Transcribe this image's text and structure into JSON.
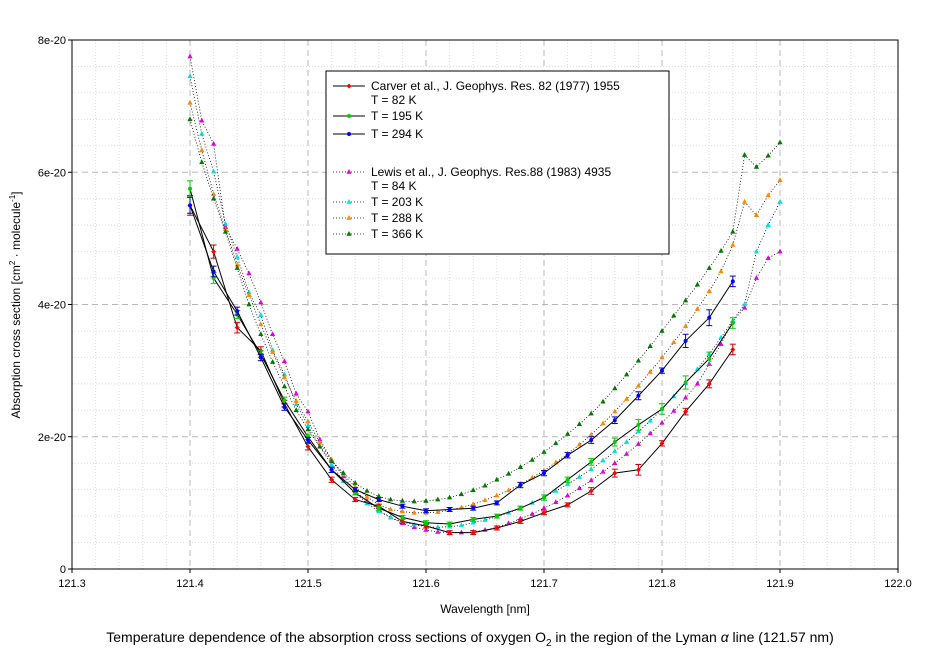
{
  "chart_data": {
    "type": "line",
    "title": "",
    "caption": {
      "pre": "Temperature dependence of the absorption cross sections of oxygen O",
      "sub": "2",
      "mid": " in the region of the Lyman ",
      "alpha": "α",
      "post": " line (121.57 nm)"
    },
    "xlabel": "Wavelength [nm]",
    "ylabel": {
      "pre": "Absorption cross section [cm",
      "sup1": "2",
      "mid": " · molecule",
      "sup2": "-1",
      "post": "]"
    },
    "xlim": [
      121.3,
      122.0
    ],
    "ylim": [
      0,
      8e-20
    ],
    "x_ticks": [
      121.3,
      121.4,
      121.5,
      121.6,
      121.7,
      121.8,
      121.9,
      122.0
    ],
    "x_tick_labels": [
      "121.3",
      "121.4",
      "121.5",
      "121.6",
      "121.7",
      "121.8",
      "121.9",
      "122.0"
    ],
    "y_ticks": [
      0,
      2e-20,
      4e-20,
      6e-20,
      8e-20
    ],
    "y_tick_labels": [
      "0",
      "2e-20",
      "4e-20",
      "6e-20",
      "8e-20"
    ],
    "grid": true,
    "legend_position": "top-center",
    "legend": {
      "carver_title": "Carver et al., J. Geophys. Res. 82 (1977) 1955",
      "lewis_title": "Lewis et al., J. Geophys. Res.88 (1983) 4935"
    },
    "series": [
      {
        "name": "Carver T = 82 K",
        "legend_label": "T =  82 K",
        "group": "Carver",
        "style": "solid",
        "marker": "diamond",
        "color": "#ff0000",
        "error_color": "#cc0000",
        "x": [
          121.4,
          121.42,
          121.44,
          121.46,
          121.48,
          121.5,
          121.52,
          121.54,
          121.56,
          121.58,
          121.6,
          121.62,
          121.64,
          121.66,
          121.68,
          121.7,
          121.72,
          121.74,
          121.76,
          121.78,
          121.8,
          121.82,
          121.84,
          121.86
        ],
        "y": [
          5.5,
          4.8,
          3.65,
          3.3,
          2.5,
          1.85,
          1.35,
          1.05,
          0.95,
          0.72,
          0.65,
          0.55,
          0.55,
          0.62,
          0.72,
          0.85,
          0.97,
          1.18,
          1.45,
          1.5,
          1.9,
          2.38,
          2.8,
          3.32
        ],
        "error": [
          0.15,
          0.1,
          0.08,
          0.06,
          0.05,
          0.05,
          0.04,
          0.03,
          0.03,
          0.03,
          0.03,
          0.03,
          0.03,
          0.03,
          0.03,
          0.03,
          0.03,
          0.05,
          0.06,
          0.08,
          0.04,
          0.05,
          0.06,
          0.08
        ]
      },
      {
        "name": "Carver T = 195 K",
        "legend_label": "T = 195 K",
        "group": "Carver",
        "style": "solid",
        "marker": "circle",
        "color": "#00cc00",
        "error_color": "#00cc00",
        "x": [
          121.4,
          121.42,
          121.44,
          121.46,
          121.48,
          121.5,
          121.52,
          121.54,
          121.56,
          121.58,
          121.6,
          121.62,
          121.64,
          121.66,
          121.68,
          121.7,
          121.72,
          121.74,
          121.76,
          121.78,
          121.8,
          121.82,
          121.84,
          121.86
        ],
        "y": [
          5.75,
          4.4,
          3.85,
          3.25,
          2.55,
          2.0,
          1.5,
          1.15,
          0.92,
          0.78,
          0.7,
          0.68,
          0.75,
          0.8,
          0.92,
          1.08,
          1.35,
          1.62,
          1.92,
          2.18,
          2.42,
          2.82,
          3.18,
          3.72
        ],
        "error": [
          0.12,
          0.08,
          0.06,
          0.05,
          0.05,
          0.04,
          0.04,
          0.03,
          0.03,
          0.03,
          0.03,
          0.03,
          0.03,
          0.03,
          0.03,
          0.04,
          0.04,
          0.05,
          0.06,
          0.08,
          0.08,
          0.1,
          0.1,
          0.08
        ]
      },
      {
        "name": "Carver T = 294 K",
        "legend_label": "T = 294 K",
        "group": "Carver",
        "style": "solid",
        "marker": "circle",
        "color": "#0000ff",
        "error_color": "#0000cc",
        "x": [
          121.4,
          121.42,
          121.44,
          121.46,
          121.48,
          121.5,
          121.52,
          121.54,
          121.56,
          121.58,
          121.6,
          121.62,
          121.64,
          121.66,
          121.68,
          121.7,
          121.72,
          121.74,
          121.76,
          121.78,
          121.8,
          121.82,
          121.84,
          121.86
        ],
        "y": [
          5.5,
          4.5,
          3.9,
          3.2,
          2.45,
          1.95,
          1.5,
          1.2,
          1.05,
          0.95,
          0.88,
          0.9,
          0.92,
          1.0,
          1.27,
          1.45,
          1.72,
          1.95,
          2.25,
          2.62,
          3.0,
          3.45,
          3.8,
          4.35
        ],
        "error": [
          0.12,
          0.08,
          0.06,
          0.05,
          0.05,
          0.04,
          0.04,
          0.03,
          0.03,
          0.03,
          0.03,
          0.03,
          0.03,
          0.03,
          0.04,
          0.04,
          0.04,
          0.05,
          0.05,
          0.06,
          0.04,
          0.1,
          0.12,
          0.08
        ]
      },
      {
        "name": "Lewis T = 84 K",
        "legend_label": "T =  84 K",
        "group": "Lewis",
        "style": "dotted",
        "marker": "triangle",
        "color": "#dd00dd",
        "x": [
          121.4,
          121.41,
          121.42,
          121.43,
          121.44,
          121.45,
          121.46,
          121.47,
          121.48,
          121.49,
          121.5,
          121.51,
          121.52,
          121.53,
          121.54,
          121.55,
          121.56,
          121.57,
          121.58,
          121.59,
          121.6,
          121.61,
          121.62,
          121.63,
          121.64,
          121.65,
          121.66,
          121.67,
          121.68,
          121.69,
          121.7,
          121.71,
          121.72,
          121.73,
          121.74,
          121.75,
          121.76,
          121.77,
          121.78,
          121.79,
          121.8,
          121.81,
          121.82,
          121.83,
          121.84,
          121.85,
          121.86,
          121.87,
          121.88,
          121.89,
          121.9
        ],
        "y": [
          7.75,
          6.78,
          6.43,
          5.175,
          4.84,
          4.47,
          4.03,
          3.55,
          3.14,
          2.65,
          2.38,
          1.96,
          1.65,
          1.4,
          1.18,
          1.03,
          0.89,
          0.78,
          0.69,
          0.63,
          0.59,
          0.56,
          0.55,
          0.55,
          0.56,
          0.59,
          0.63,
          0.69,
          0.76,
          0.83,
          0.92,
          1.01,
          1.11,
          1.22,
          1.34,
          1.47,
          1.6,
          1.74,
          1.89,
          2.05,
          2.21,
          2.39,
          2.59,
          2.8,
          3.1,
          3.4,
          3.75,
          3.95,
          4.4,
          4.7,
          4.8
        ]
      },
      {
        "name": "Lewis T = 203 K",
        "legend_label": "T = 203 K",
        "group": "Lewis",
        "style": "dotted",
        "marker": "triangle",
        "color": "#00dddd",
        "x": [
          121.4,
          121.41,
          121.42,
          121.43,
          121.44,
          121.45,
          121.46,
          121.47,
          121.48,
          121.49,
          121.5,
          121.51,
          121.52,
          121.53,
          121.54,
          121.55,
          121.56,
          121.57,
          121.58,
          121.59,
          121.6,
          121.61,
          121.62,
          121.63,
          121.64,
          121.65,
          121.66,
          121.67,
          121.68,
          121.69,
          121.7,
          121.71,
          121.72,
          121.73,
          121.74,
          121.75,
          121.76,
          121.77,
          121.78,
          121.79,
          121.8,
          121.81,
          121.82,
          121.83,
          121.84,
          121.85,
          121.86,
          121.87,
          121.88,
          121.89,
          121.9
        ],
        "y": [
          7.45,
          6.58,
          6.01,
          5.22,
          4.72,
          4.18,
          3.84,
          3.31,
          2.94,
          2.49,
          2.17,
          1.85,
          1.58,
          1.33,
          1.15,
          0.99,
          0.87,
          0.78,
          0.71,
          0.67,
          0.64,
          0.63,
          0.64,
          0.66,
          0.7,
          0.74,
          0.79,
          0.85,
          0.92,
          1.0,
          1.09,
          1.18,
          1.28,
          1.39,
          1.51,
          1.64,
          1.78,
          1.92,
          2.08,
          2.24,
          2.42,
          2.61,
          2.81,
          3.02,
          3.25,
          3.5,
          3.76,
          4.0,
          4.8,
          5.2,
          5.55
        ]
      },
      {
        "name": "Lewis T = 288 K",
        "legend_label": "T = 288 K",
        "group": "Lewis",
        "style": "dotted",
        "marker": "triangle",
        "color": "#ff8800",
        "x": [
          121.4,
          121.41,
          121.42,
          121.43,
          121.44,
          121.45,
          121.46,
          121.47,
          121.48,
          121.49,
          121.5,
          121.51,
          121.52,
          121.53,
          121.54,
          121.55,
          121.56,
          121.57,
          121.58,
          121.59,
          121.6,
          121.61,
          121.62,
          121.63,
          121.64,
          121.65,
          121.66,
          121.67,
          121.68,
          121.69,
          121.7,
          121.71,
          121.72,
          121.73,
          121.74,
          121.75,
          121.76,
          121.77,
          121.78,
          121.79,
          121.8,
          121.81,
          121.82,
          121.83,
          121.84,
          121.85,
          121.86,
          121.87,
          121.88,
          121.89,
          121.9
        ],
        "y": [
          7.05,
          6.33,
          5.67,
          5.14,
          4.6,
          4.14,
          3.7,
          3.28,
          2.9,
          2.54,
          2.23,
          1.91,
          1.65,
          1.43,
          1.24,
          1.09,
          0.97,
          0.9,
          0.87,
          0.85,
          0.85,
          0.86,
          0.89,
          0.93,
          0.98,
          1.04,
          1.11,
          1.19,
          1.28,
          1.38,
          1.49,
          1.61,
          1.74,
          1.88,
          2.03,
          2.2,
          2.38,
          2.57,
          2.77,
          2.98,
          3.2,
          3.43,
          3.67,
          3.93,
          4.2,
          4.5,
          4.9,
          5.55,
          5.35,
          5.65,
          5.88
        ]
      },
      {
        "name": "Lewis T = 366 K",
        "legend_label": "T = 366 K",
        "group": "Lewis",
        "style": "dotted",
        "marker": "triangle",
        "color": "#007700",
        "x": [
          121.4,
          121.41,
          121.42,
          121.43,
          121.44,
          121.45,
          121.46,
          121.47,
          121.48,
          121.49,
          121.5,
          121.51,
          121.52,
          121.53,
          121.54,
          121.55,
          121.56,
          121.57,
          121.58,
          121.59,
          121.6,
          121.61,
          121.62,
          121.63,
          121.64,
          121.65,
          121.66,
          121.67,
          121.68,
          121.69,
          121.7,
          121.71,
          121.72,
          121.73,
          121.74,
          121.75,
          121.76,
          121.77,
          121.78,
          121.79,
          121.8,
          121.81,
          121.82,
          121.83,
          121.84,
          121.85,
          121.86,
          121.87,
          121.88,
          121.89,
          121.9
        ],
        "y": [
          6.8,
          6.15,
          5.6,
          5.1,
          4.55,
          4.0,
          3.55,
          3.13,
          2.76,
          2.4,
          2.11,
          1.85,
          1.63,
          1.45,
          1.3,
          1.18,
          1.1,
          1.05,
          1.03,
          1.02,
          1.03,
          1.05,
          1.08,
          1.13,
          1.19,
          1.26,
          1.35,
          1.44,
          1.54,
          1.65,
          1.77,
          1.9,
          2.04,
          2.19,
          2.35,
          2.53,
          2.73,
          2.94,
          3.15,
          3.37,
          3.6,
          3.83,
          4.06,
          4.3,
          4.55,
          4.81,
          5.1,
          6.26,
          6.08,
          6.25,
          6.45
        ]
      }
    ],
    "y_scale_note": "y values in units of 1e-20"
  }
}
